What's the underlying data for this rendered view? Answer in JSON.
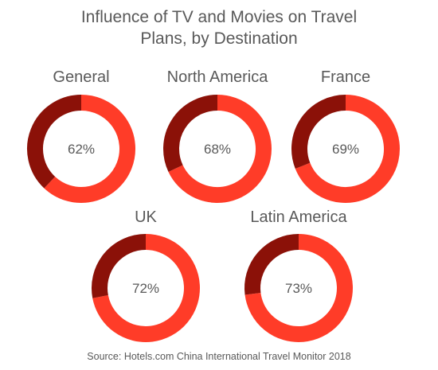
{
  "title_line1": "Influence of TV and Movies on Travel",
  "title_line2": "Plans, by Destination",
  "source": "Source: Hotels.com China International Travel Monitor 2018",
  "colors": {
    "primary": "#ff3c28",
    "remainder": "#8b1108",
    "text": "#595959"
  },
  "chart_data": [
    {
      "type": "pie",
      "subtype": "donut",
      "title": "General",
      "values": [
        62,
        38
      ],
      "label": "62%"
    },
    {
      "type": "pie",
      "subtype": "donut",
      "title": "North America",
      "values": [
        68,
        32
      ],
      "label": "68%"
    },
    {
      "type": "pie",
      "subtype": "donut",
      "title": "France",
      "values": [
        69,
        31
      ],
      "label": "69%"
    },
    {
      "type": "pie",
      "subtype": "donut",
      "title": "UK",
      "values": [
        72,
        28
      ],
      "label": "72%"
    },
    {
      "type": "pie",
      "subtype": "donut",
      "title": "Latin America",
      "values": [
        73,
        27
      ],
      "label": "73%"
    }
  ]
}
